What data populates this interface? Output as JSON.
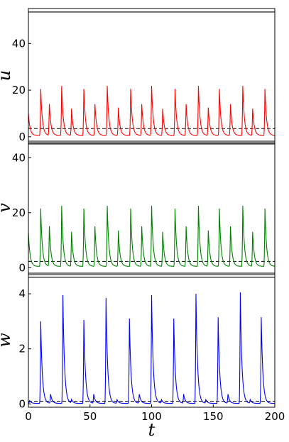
{
  "chart_data": [
    {
      "type": "line",
      "ylabel": "u",
      "color": "#ff0000",
      "ylim": [
        -2.5,
        55
      ],
      "yticks": [
        "0",
        "20",
        "40"
      ],
      "ytick_values": [
        0,
        20,
        40
      ],
      "xlim": [
        0,
        200
      ],
      "upper_reference": 53.5,
      "dashed_reference": 3.5,
      "baseline": 0.6,
      "series": [
        {
          "peaks_t": [
            0,
            10,
            17,
            27,
            35,
            45,
            54,
            64,
            73,
            83,
            92,
            100,
            109,
            119,
            128,
            138,
            146,
            155,
            164,
            174,
            182,
            192
          ],
          "peaks_v": [
            10,
            20.5,
            14,
            21.8,
            12,
            20.5,
            14,
            21.8,
            12.5,
            20.5,
            14,
            21.8,
            12,
            20.5,
            14,
            21.8,
            12.5,
            20.5,
            14,
            21.8,
            12,
            20.5
          ]
        }
      ]
    },
    {
      "type": "line",
      "ylabel": "v",
      "color": "#008000",
      "ylim": [
        -2.5,
        46
      ],
      "yticks": [
        "0",
        "20",
        "40"
      ],
      "ytick_values": [
        0,
        20,
        40
      ],
      "xlim": [
        0,
        200
      ],
      "upper_reference": 45,
      "dashed_reference": 2.3,
      "baseline": 0.5,
      "series": [
        {
          "peaks_t": [
            0,
            10,
            17,
            27,
            35,
            45,
            54,
            64,
            73,
            83,
            92,
            100,
            109,
            119,
            128,
            138,
            146,
            155,
            164,
            174,
            182,
            192
          ],
          "peaks_v": [
            13,
            21.5,
            15,
            22.5,
            13,
            21.5,
            15,
            22.5,
            13.5,
            21.5,
            15,
            22.5,
            13,
            21.5,
            15,
            22.5,
            13.5,
            21.5,
            15,
            22.5,
            13,
            21.5
          ]
        }
      ]
    },
    {
      "type": "line",
      "ylabel": "w",
      "color": "#0000ff",
      "ylim": [
        -0.12,
        4.75
      ],
      "yticks": [
        "0",
        "2",
        "4"
      ],
      "ytick_values": [
        0,
        2,
        4
      ],
      "xlim": [
        0,
        200
      ],
      "xticks": [
        "0",
        "50",
        "100",
        "150",
        "200"
      ],
      "xtick_values": [
        0,
        50,
        100,
        150,
        200
      ],
      "xlabel": "t",
      "upper_reference": 4.6,
      "dashed_reference": 0.1,
      "baseline": 0.02,
      "series": [
        {
          "peaks_t": [
            1,
            10,
            18,
            28,
            35,
            45,
            53,
            63,
            72,
            82,
            90,
            100,
            108,
            118,
            126,
            136,
            144,
            154,
            162,
            172,
            180,
            189
          ],
          "peaks_v": [
            0.12,
            3.0,
            0.35,
            3.95,
            0.15,
            3.05,
            0.35,
            3.85,
            0.15,
            3.1,
            0.35,
            3.95,
            0.15,
            3.1,
            0.35,
            4.0,
            0.15,
            3.15,
            0.35,
            4.05,
            0.15,
            3.15
          ]
        }
      ]
    }
  ]
}
